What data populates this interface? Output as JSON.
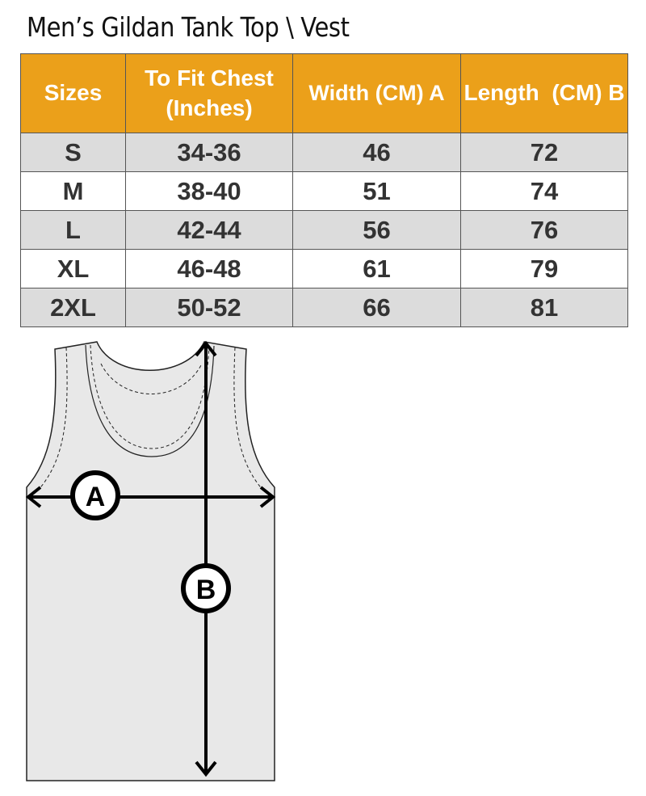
{
  "title": "Men’s Gildan Tank Top \\ Vest",
  "table": {
    "headers": [
      "Sizes",
      "To Fit Chest (Inches)",
      "Width (CM) A",
      "Length  (CM) B"
    ],
    "rows": [
      [
        "S",
        "34-36",
        "46",
        "72"
      ],
      [
        "M",
        "38-40",
        "51",
        "74"
      ],
      [
        "L",
        "42-44",
        "56",
        "76"
      ],
      [
        "XL",
        "46-48",
        "61",
        "79"
      ],
      [
        "2XL",
        "50-52",
        "66",
        "81"
      ]
    ]
  },
  "diagram": {
    "label_a": "A",
    "label_b": "B"
  },
  "colors": {
    "header": "#eba01a",
    "stripe": "#dcdcdc"
  }
}
